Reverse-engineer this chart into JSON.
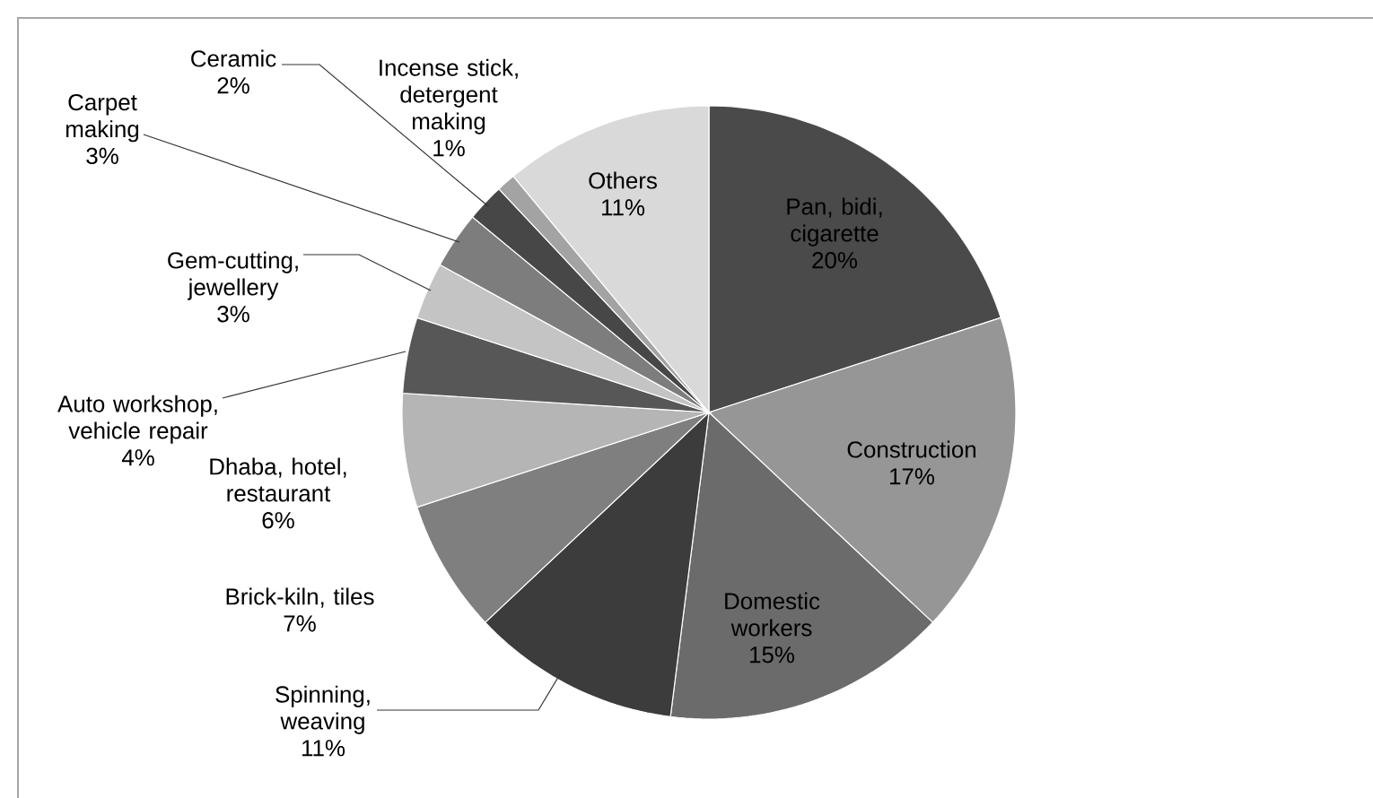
{
  "chart_data": {
    "type": "pie",
    "categories": [
      "Pan, bidi, cigarette",
      "Construction",
      "Domestic workers",
      "Spinning, weaving",
      "Brick-kiln, tiles",
      "Dhaba, hotel, restaurant",
      "Auto workshop, vehicle repair",
      "Gem-cutting, jewellery",
      "Carpet making",
      "Ceramic",
      "Incense stick, detergent making",
      "Others"
    ],
    "values": [
      20,
      17,
      15,
      11,
      7,
      6,
      4,
      3,
      3,
      2,
      1,
      11
    ],
    "value_labels": [
      "20%",
      "17%",
      "15%",
      "11%",
      "7%",
      "6%",
      "4%",
      "3%",
      "3%",
      "2%",
      "1%",
      "11%"
    ],
    "colors": [
      "#4a4a4a",
      "#969696",
      "#6b6b6b",
      "#3c3c3c",
      "#7f7f7f",
      "#b5b5b5",
      "#575757",
      "#c4c4c4",
      "#7d7d7d",
      "#474747",
      "#a3a3a3",
      "#d9d9d9"
    ]
  }
}
